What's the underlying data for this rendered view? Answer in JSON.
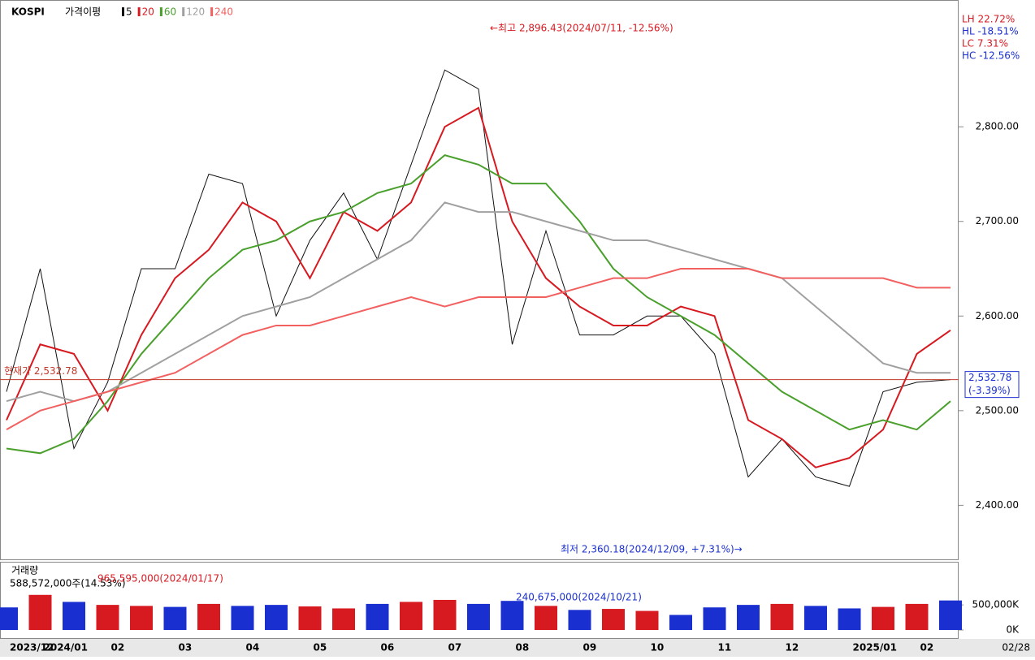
{
  "chart_data": [
    {
      "type": "line",
      "title": "KOSPI",
      "legend_title": "가격이평",
      "series": [
        {
          "name": "5",
          "color": "#111111",
          "values": [
            2520,
            2650,
            2460,
            2530,
            2650,
            2650,
            2750,
            2740,
            2600,
            2680,
            2730,
            2660,
            2760,
            2860,
            2840,
            2570,
            2690,
            2580,
            2580,
            2600,
            2600,
            2560,
            2430,
            2470,
            2430,
            2420,
            2520,
            2530,
            2532.78
          ]
        },
        {
          "name": "20",
          "color": "#d71920",
          "values": [
            2490,
            2570,
            2560,
            2500,
            2580,
            2640,
            2670,
            2720,
            2700,
            2640,
            2710,
            2690,
            2720,
            2800,
            2820,
            2700,
            2640,
            2610,
            2590,
            2590,
            2610,
            2600,
            2490,
            2470,
            2440,
            2450,
            2480,
            2560,
            2585
          ]
        },
        {
          "name": "60",
          "color": "#4aa02c",
          "values": [
            2460,
            2455,
            2470,
            2510,
            2560,
            2600,
            2640,
            2670,
            2680,
            2700,
            2710,
            2730,
            2740,
            2770,
            2760,
            2740,
            2740,
            2700,
            2650,
            2620,
            2600,
            2580,
            2550,
            2520,
            2500,
            2480,
            2490,
            2480,
            2510
          ]
        },
        {
          "name": "120",
          "color": "#a0a0a0",
          "values": [
            2510,
            2520,
            2510,
            2520,
            2540,
            2560,
            2580,
            2600,
            2610,
            2620,
            2640,
            2660,
            2680,
            2720,
            2710,
            2710,
            2700,
            2690,
            2680,
            2680,
            2670,
            2660,
            2650,
            2640,
            2610,
            2580,
            2550,
            2540,
            2540
          ]
        },
        {
          "name": "240",
          "color": "#f26060",
          "values": [
            2480,
            2500,
            2510,
            2520,
            2530,
            2540,
            2560,
            2580,
            2590,
            2590,
            2600,
            2610,
            2620,
            2610,
            2620,
            2620,
            2620,
            2630,
            2640,
            2640,
            2650,
            2650,
            2650,
            2640,
            2640,
            2640,
            2640,
            2630,
            2630
          ]
        }
      ],
      "ylim": [
        2342,
        2934
      ],
      "yticks": [
        {
          "value": 2400,
          "label": "2,400.00"
        },
        {
          "value": 2500,
          "label": "2,500.00"
        },
        {
          "value": 2600,
          "label": "2,600.00"
        },
        {
          "value": 2700,
          "label": "2,700.00"
        },
        {
          "value": 2800,
          "label": "2,800.00"
        }
      ],
      "high_note": "←최고 2,896.43(2024/07/11, -12.56%)",
      "low_note": "최저 2,360.18(2024/12/09, +7.31%)→",
      "current": {
        "value": 2532.78,
        "label": "현재가 2,532.78"
      },
      "current_box": [
        "2,532.78",
        "(-3.39%)"
      ],
      "stats": [
        {
          "text": "LH  22.72%",
          "color": "#d71920"
        },
        {
          "text": "HL -18.51%",
          "color": "#1a2fd0"
        },
        {
          "text": "LC   7.31%",
          "color": "#d71920"
        },
        {
          "text": "HC -12.56%",
          "color": "#1a2fd0"
        }
      ]
    },
    {
      "type": "bar",
      "title": "거래량",
      "categories": [
        "2023/12",
        "2024/01",
        null,
        "02",
        null,
        "03",
        null,
        "04",
        null,
        "05",
        null,
        "06",
        null,
        "07",
        null,
        "08",
        null,
        "09",
        null,
        "10",
        null,
        "11",
        null,
        "12",
        null,
        "2025/01",
        null,
        "02",
        null
      ],
      "values": [
        450000,
        700000,
        560000,
        500000,
        480000,
        460000,
        520000,
        480000,
        500000,
        470000,
        430000,
        520000,
        560000,
        600000,
        520000,
        580000,
        480000,
        400000,
        420000,
        380000,
        300000,
        450000,
        500000,
        520000,
        480000,
        430000,
        460000,
        520000,
        588572
      ],
      "colors": [
        "#1a2fd0",
        "#d71920",
        "#1a2fd0",
        "#d71920",
        "#d71920",
        "#1a2fd0",
        "#d71920",
        "#1a2fd0",
        "#1a2fd0",
        "#d71920",
        "#d71920",
        "#1a2fd0",
        "#d71920",
        "#d71920",
        "#1a2fd0",
        "#1a2fd0",
        "#d71920",
        "#1a2fd0",
        "#d71920",
        "#d71920",
        "#1a2fd0",
        "#1a2fd0",
        "#1a2fd0",
        "#d71920",
        "#1a2fd0",
        "#1a2fd0",
        "#d71920",
        "#d71920",
        "#1a2fd0"
      ],
      "ylim": [
        0,
        1150000
      ],
      "yticks": [
        {
          "value": 0,
          "label": "0K"
        },
        {
          "value": 500000,
          "label": "500,000K"
        }
      ],
      "subtitle": "588,572,000주(14.53%)",
      "max_note": "965,595,000(2024/01/17)",
      "min_note": "240,675,000(2024/10/21)",
      "last_date": "02/28"
    }
  ]
}
